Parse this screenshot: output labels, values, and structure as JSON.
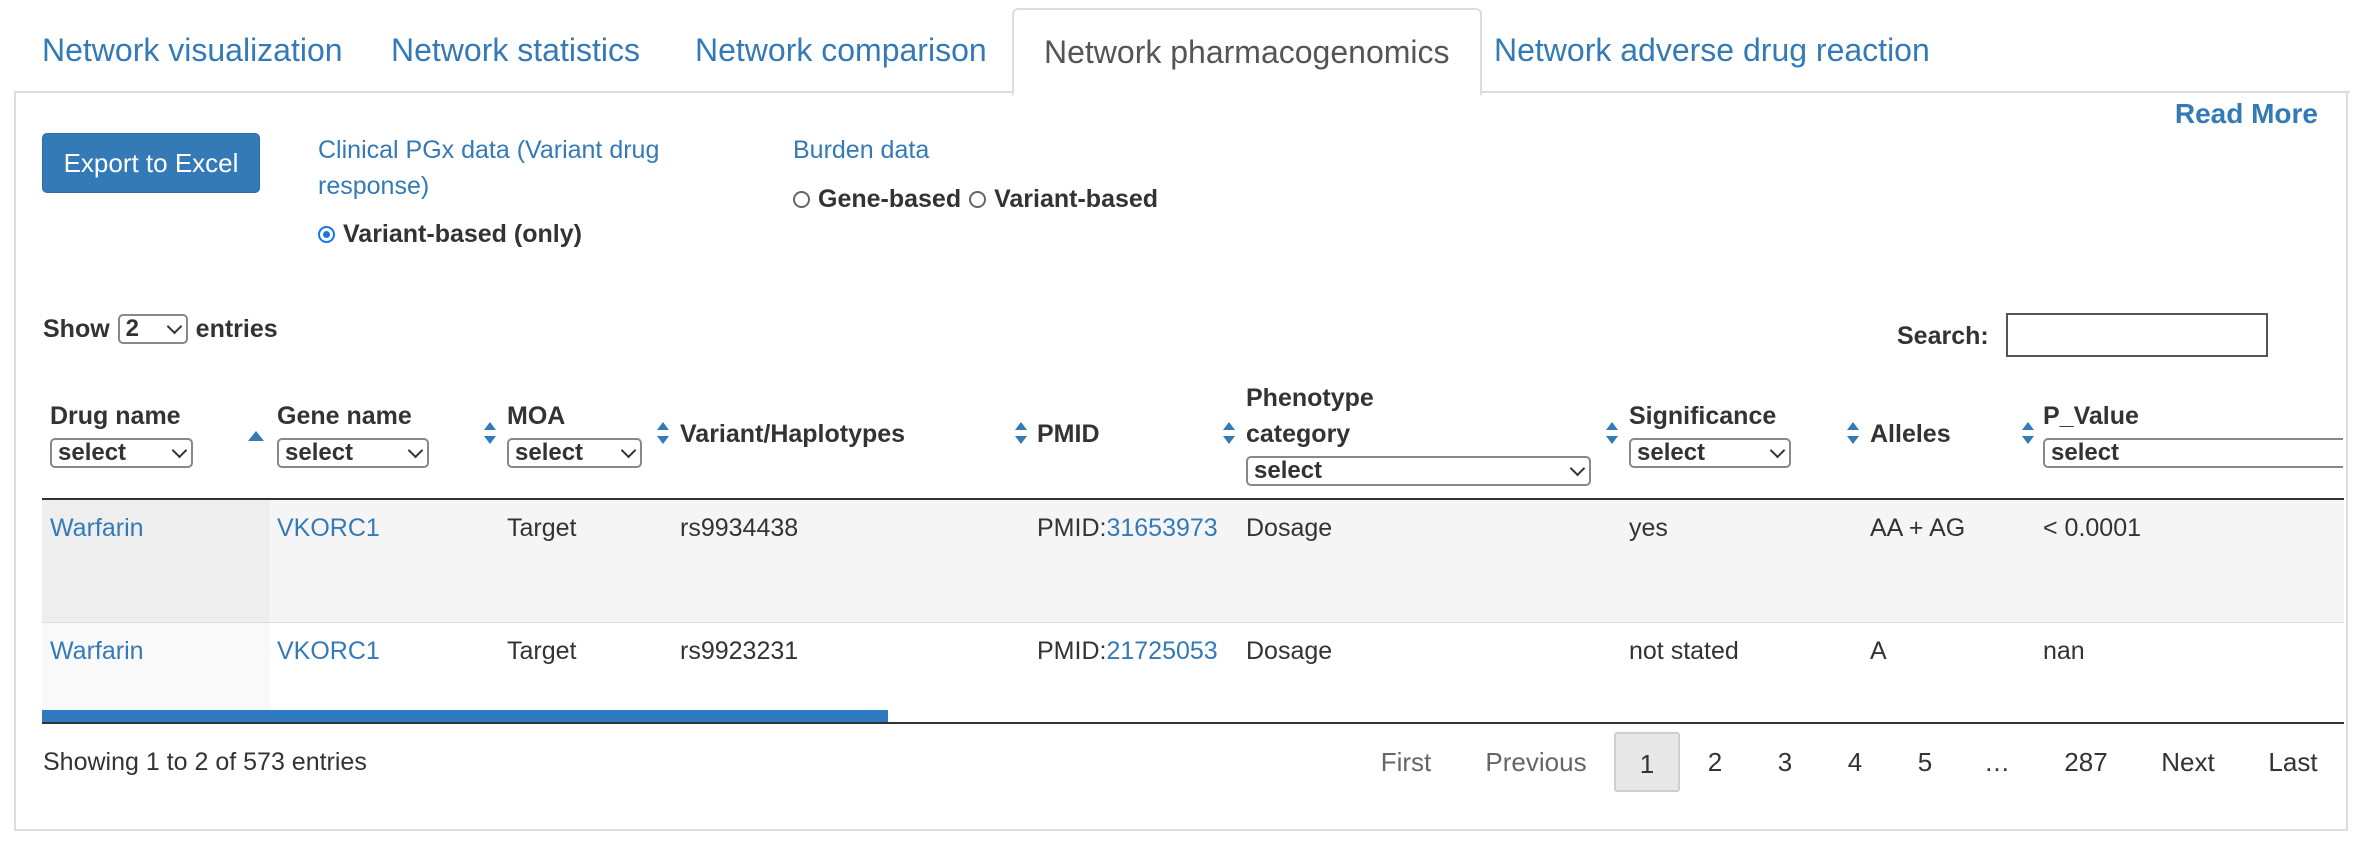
{
  "tabs": [
    {
      "label": "Network visualization"
    },
    {
      "label": "Network statistics"
    },
    {
      "label": "Network comparison"
    },
    {
      "label": "Network pharmacogenomics"
    },
    {
      "label": "Network adverse drug reaction"
    }
  ],
  "active_tab": "Network pharmacogenomics",
  "read_more": "Read More",
  "export_button": "Export to Excel",
  "clinical_group": {
    "label_line1": "Clinical PGx data (Variant drug",
    "label_line2": "response)",
    "options": [
      {
        "label": "Variant-based (only)",
        "checked": true
      }
    ]
  },
  "burden_group": {
    "label": "Burden data",
    "options": [
      {
        "label": "Gene-based",
        "checked": false
      },
      {
        "label": "Variant-based",
        "checked": false
      }
    ]
  },
  "length": {
    "show": "Show",
    "value": "2",
    "entries": "entries"
  },
  "search": {
    "label": "Search:",
    "value": ""
  },
  "columns": [
    {
      "title": "Drug name",
      "filter": "select",
      "sort": "none"
    },
    {
      "title": "Gene name",
      "filter": "select",
      "sort": "asc"
    },
    {
      "title": "MOA",
      "filter": "select",
      "sort": "both"
    },
    {
      "title": "Variant/Haplotypes",
      "filter": "",
      "sort": "both"
    },
    {
      "title": "PMID",
      "filter": "",
      "sort": "both"
    },
    {
      "title_line1": "Phenotype",
      "title_line2": "category",
      "filter": "select",
      "sort": "both"
    },
    {
      "title": "Significance",
      "filter": "select",
      "sort": "both"
    },
    {
      "title": "Alleles",
      "filter": "",
      "sort": "both"
    },
    {
      "title": "P_Value",
      "filter": "select",
      "sort": "both"
    }
  ],
  "rows": [
    {
      "drug": "Warfarin",
      "gene": "VKORC1",
      "moa": "Target",
      "variant": "rs9934438",
      "pmid_prefix": "PMID:",
      "pmid": "31653973",
      "phenotype": "Dosage",
      "significance": "yes",
      "alleles": "AA + AG",
      "p_value": "< 0.0001"
    },
    {
      "drug": "Warfarin",
      "gene": "VKORC1",
      "moa": "Target",
      "variant": "rs9923231",
      "pmid_prefix": "PMID:",
      "pmid": "21725053",
      "phenotype": "Dosage",
      "significance": "not stated",
      "alleles": "A",
      "p_value": "nan"
    }
  ],
  "info": "Showing 1 to 2 of 573 entries",
  "pagination": {
    "first": "First",
    "previous": "Previous",
    "pages": [
      "1",
      "2",
      "3",
      "4",
      "5"
    ],
    "ellipsis": "…",
    "last_page": "287",
    "next": "Next",
    "last": "Last",
    "current": "1"
  },
  "colors": {
    "link": "#337ab7",
    "button": "#337ab7",
    "scrollbar": "#2f79c0"
  }
}
